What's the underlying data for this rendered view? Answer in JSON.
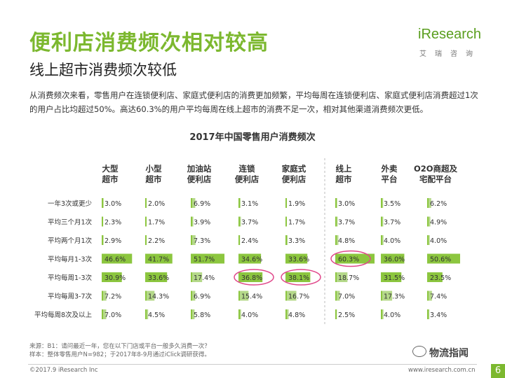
{
  "header": {
    "title": "便利店消费频次相对较高",
    "subtitle": "线上超市消费频次较低",
    "logo_text": "iResearch",
    "logo_sub": "艾瑞咨询"
  },
  "description": "从消费频次来看，零售用户在连锁便利店、家庭式便利店的消费更加频繁，平均每周在连锁便利店、家庭式便利店消费超过1次的用户占比均超过50%。高达60.3%的用户平均每周在线上超市的消费不足一次，相对其他渠道消费频次更低。",
  "footer": {
    "source": "来源：B1：请问最近一年，您在以下门店或平台一般多久消费一次？",
    "sample": "样本：整体零售用户N=982；于2017年8-9月通过iClick调研获得。",
    "copyright": "©2017.9 iResearch Inc",
    "url": "www.iresearch.com.cn",
    "page": "6",
    "watermark": "物流指闻"
  },
  "colors": {
    "accent": "#7cb82f",
    "bar": "#8cc63f",
    "bar_light": "#b5d98a",
    "highlight": "#e0478a"
  },
  "chart_data": {
    "type": "table",
    "title": "2017年中国零售用户消费频次",
    "columns": [
      [
        "大型",
        "超市"
      ],
      [
        "小型",
        "超市"
      ],
      [
        "加油站",
        "便利店"
      ],
      [
        "连锁",
        "便利店"
      ],
      [
        "家庭式",
        "便利店"
      ],
      [
        "线上",
        "超市"
      ],
      [
        "外卖",
        "平台"
      ],
      [
        "O2O商超及",
        "宅配平台"
      ]
    ],
    "rows": [
      "一年3次或更少",
      "平均三个月1次",
      "平均两个月1次",
      "平均每月1-3次",
      "平均每周1-3次",
      "平均每周3-7次",
      "平均每周8次及以上"
    ],
    "values": [
      [
        3.0,
        2.0,
        6.9,
        3.1,
        1.9,
        3.0,
        3.5,
        6.2
      ],
      [
        2.3,
        1.7,
        3.9,
        3.7,
        1.7,
        3.7,
        3.7,
        4.9
      ],
      [
        2.9,
        2.2,
        7.3,
        2.4,
        3.3,
        4.8,
        4.0,
        4.0
      ],
      [
        46.6,
        41.7,
        51.7,
        34.6,
        33.6,
        60.3,
        36.0,
        50.6
      ],
      [
        30.9,
        33.6,
        17.4,
        36.8,
        38.1,
        18.7,
        31.5,
        23.5
      ],
      [
        7.2,
        14.3,
        6.9,
        15.4,
        16.7,
        7.0,
        17.3,
        7.4
      ],
      [
        7.0,
        4.5,
        5.8,
        4.0,
        4.8,
        2.5,
        4.0,
        3.4
      ]
    ],
    "labels": [
      [
        "3.0%",
        "2.0%",
        "6.9%",
        "3.1%",
        "1.9%",
        "3.0%",
        "3.5%",
        "6.2%"
      ],
      [
        "2.3%",
        "1.7%",
        "3.9%",
        "3.7%",
        "1.7%",
        "3.7%",
        "3.7%",
        "4.9%"
      ],
      [
        "2.9%",
        "2.2%",
        "7.3%",
        "2.4%",
        "3.3%",
        "4.8%",
        "4.0%",
        "4.0%"
      ],
      [
        "46.6%",
        "41.7%",
        "51.7%",
        "34.6%",
        "33.6%",
        "60.3%",
        "36.0%",
        "50.6%"
      ],
      [
        "30.9%",
        "33.6%",
        "17.4%",
        "36.8%",
        "38.1%",
        "18.7%",
        "31.5%",
        "23.5%"
      ],
      [
        "7.2%",
        "14.3%",
        "6.9%",
        "15.4%",
        "16.7%",
        "7.0%",
        "17.3%",
        "7.4%"
      ],
      [
        "7.0%",
        "4.5%",
        "5.8%",
        "4.0%",
        "4.8%",
        "2.5%",
        "4.0%",
        "3.4%"
      ]
    ],
    "highlighted": [
      [
        3,
        5
      ],
      [
        4,
        3
      ],
      [
        4,
        4
      ]
    ],
    "value_scale_max": 60.3
  }
}
